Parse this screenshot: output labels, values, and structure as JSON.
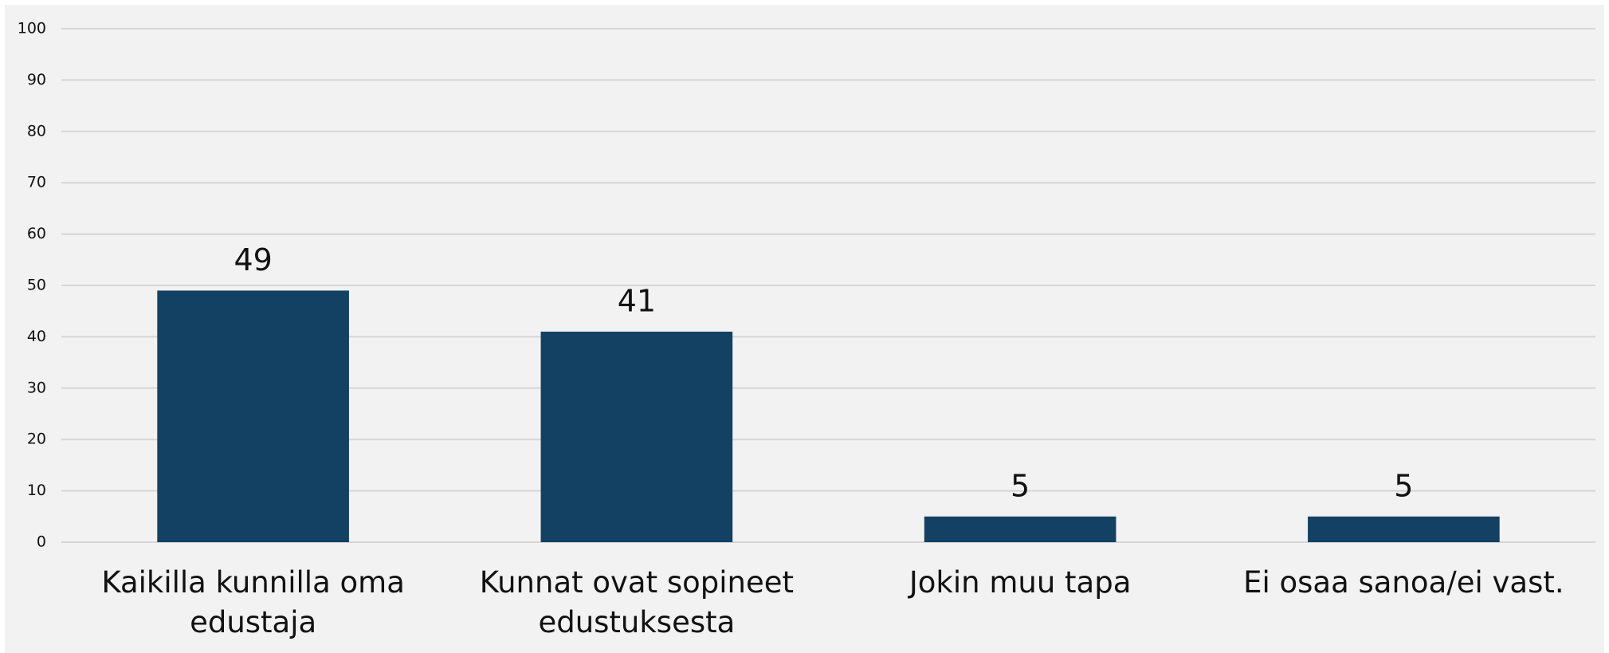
{
  "chart_data": {
    "type": "bar",
    "categories": [
      "Kaikilla kunnilla oma edustaja",
      "Kunnat ovat sopineet edustuksesta",
      "Jokin muu tapa",
      "Ei osaa sanoa/ei vast."
    ],
    "values": [
      49,
      41,
      5,
      5
    ],
    "color": "#124163",
    "ylim": [
      0,
      100
    ],
    "yticks": [
      0,
      10,
      20,
      30,
      40,
      50,
      60,
      70,
      80,
      90,
      100
    ],
    "grid": true
  }
}
